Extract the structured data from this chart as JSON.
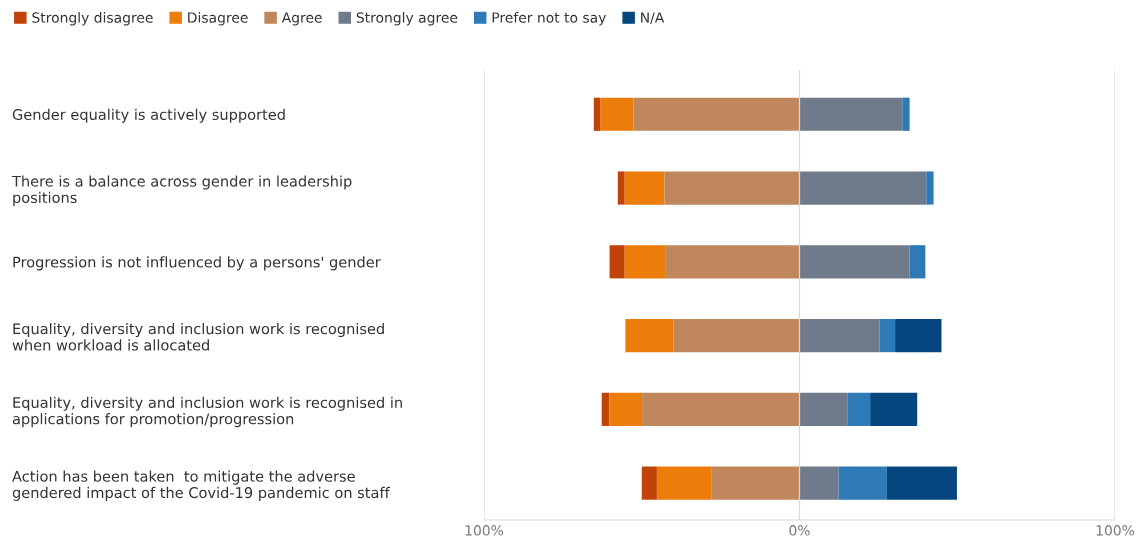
{
  "chart_data": {
    "type": "bar",
    "orientation": "horizontal",
    "categories": [
      "Gender equality is actively supported",
      "There is a balance across gender in leadership\npositions",
      "Progression is not influenced by a persons' gender",
      "Equality, diversity and inclusion work is recognised\nwhen workload is allocated",
      "Equality, diversity and inclusion work is recognised in\napplications for promotion/progression",
      "Action has been taken  to mitigate the adverse\ngendered impact of the Covid-19 pandemic on staff"
    ],
    "series": [
      {
        "name": "Strongly disagree",
        "color": "#c0430a",
        "base": [
          -63.2,
          -55.4,
          -55.4,
          null,
          -60.3,
          -45.2
        ],
        "values": [
          -2.0,
          -2.2,
          -4.8,
          null,
          -2.4,
          -4.8
        ]
      },
      {
        "name": "Disagree",
        "color": "#ed7d0b",
        "base": [
          -52.6,
          -42.8,
          -42.6,
          -39.9,
          -49.9,
          -27.8
        ],
        "values": [
          -10.6,
          -12.6,
          -12.8,
          -15.3,
          -10.4,
          -17.4
        ]
      },
      {
        "name": "Agree",
        "color": "#c0875d",
        "base": [
          0,
          0,
          0,
          0,
          0,
          0
        ],
        "values": [
          -52.6,
          -42.8,
          -42.6,
          -39.9,
          -49.9,
          -27.8
        ]
      },
      {
        "name": "Strongly agree",
        "color": "#6f7b8b",
        "base": [
          0,
          0,
          0,
          0,
          0,
          0
        ],
        "values": [
          32.6,
          40.2,
          34.9,
          25.4,
          15.3,
          12.4
        ]
      },
      {
        "name": "Prefer not to say",
        "color": "#2e7ab6",
        "base": [
          32.6,
          40.2,
          34.9,
          25.4,
          15.3,
          12.4
        ],
        "values": [
          2.3,
          2.3,
          5.0,
          4.9,
          7.1,
          15.3
        ]
      },
      {
        "name": "N/A",
        "color": "#06467e",
        "base": [
          null,
          null,
          null,
          30.3,
          22.4,
          27.7
        ],
        "values": [
          null,
          null,
          null,
          14.7,
          14.9,
          22.2
        ]
      }
    ],
    "xlim": [
      -100,
      100
    ],
    "xticks": [
      {
        "value": -100,
        "label": "100%"
      },
      {
        "value": 0,
        "label": "0%"
      },
      {
        "value": 100,
        "label": "100%"
      }
    ],
    "grid": "x",
    "legend": "top left"
  }
}
